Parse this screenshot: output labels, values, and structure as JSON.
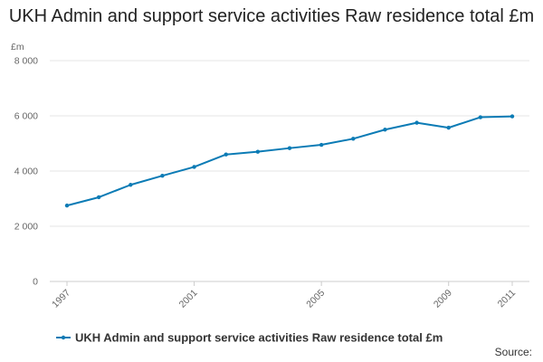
{
  "chart_data": {
    "type": "line",
    "title": "UKH Admin and support service activities Raw residence total £m",
    "ylabel": "£m",
    "xlabel": "",
    "ylim": [
      0,
      8000
    ],
    "yticks": [
      0,
      2000,
      4000,
      6000,
      8000
    ],
    "ytick_labels": [
      "0",
      "2 000",
      "4 000",
      "6 000",
      "8 000"
    ],
    "xlim": [
      1997,
      2011
    ],
    "xticks": [
      1997,
      2001,
      2005,
      2009,
      2011
    ],
    "xtick_labels": [
      "1997",
      "2001",
      "2005",
      "2009",
      "2011"
    ],
    "grid": true,
    "legend_position": "bottom-left",
    "series": [
      {
        "name": "UKH Admin and support service activities Raw residence total £m",
        "color": "#0b7bb5",
        "x": [
          1997,
          1998,
          1999,
          2000,
          2001,
          2002,
          2003,
          2004,
          2005,
          2006,
          2007,
          2008,
          2009,
          2010,
          2011
        ],
        "values": [
          2750,
          3050,
          3500,
          3830,
          4150,
          4600,
          4700,
          4830,
          4950,
          5170,
          5500,
          5750,
          5570,
          5950,
          5980
        ]
      }
    ],
    "source": "Source:"
  }
}
